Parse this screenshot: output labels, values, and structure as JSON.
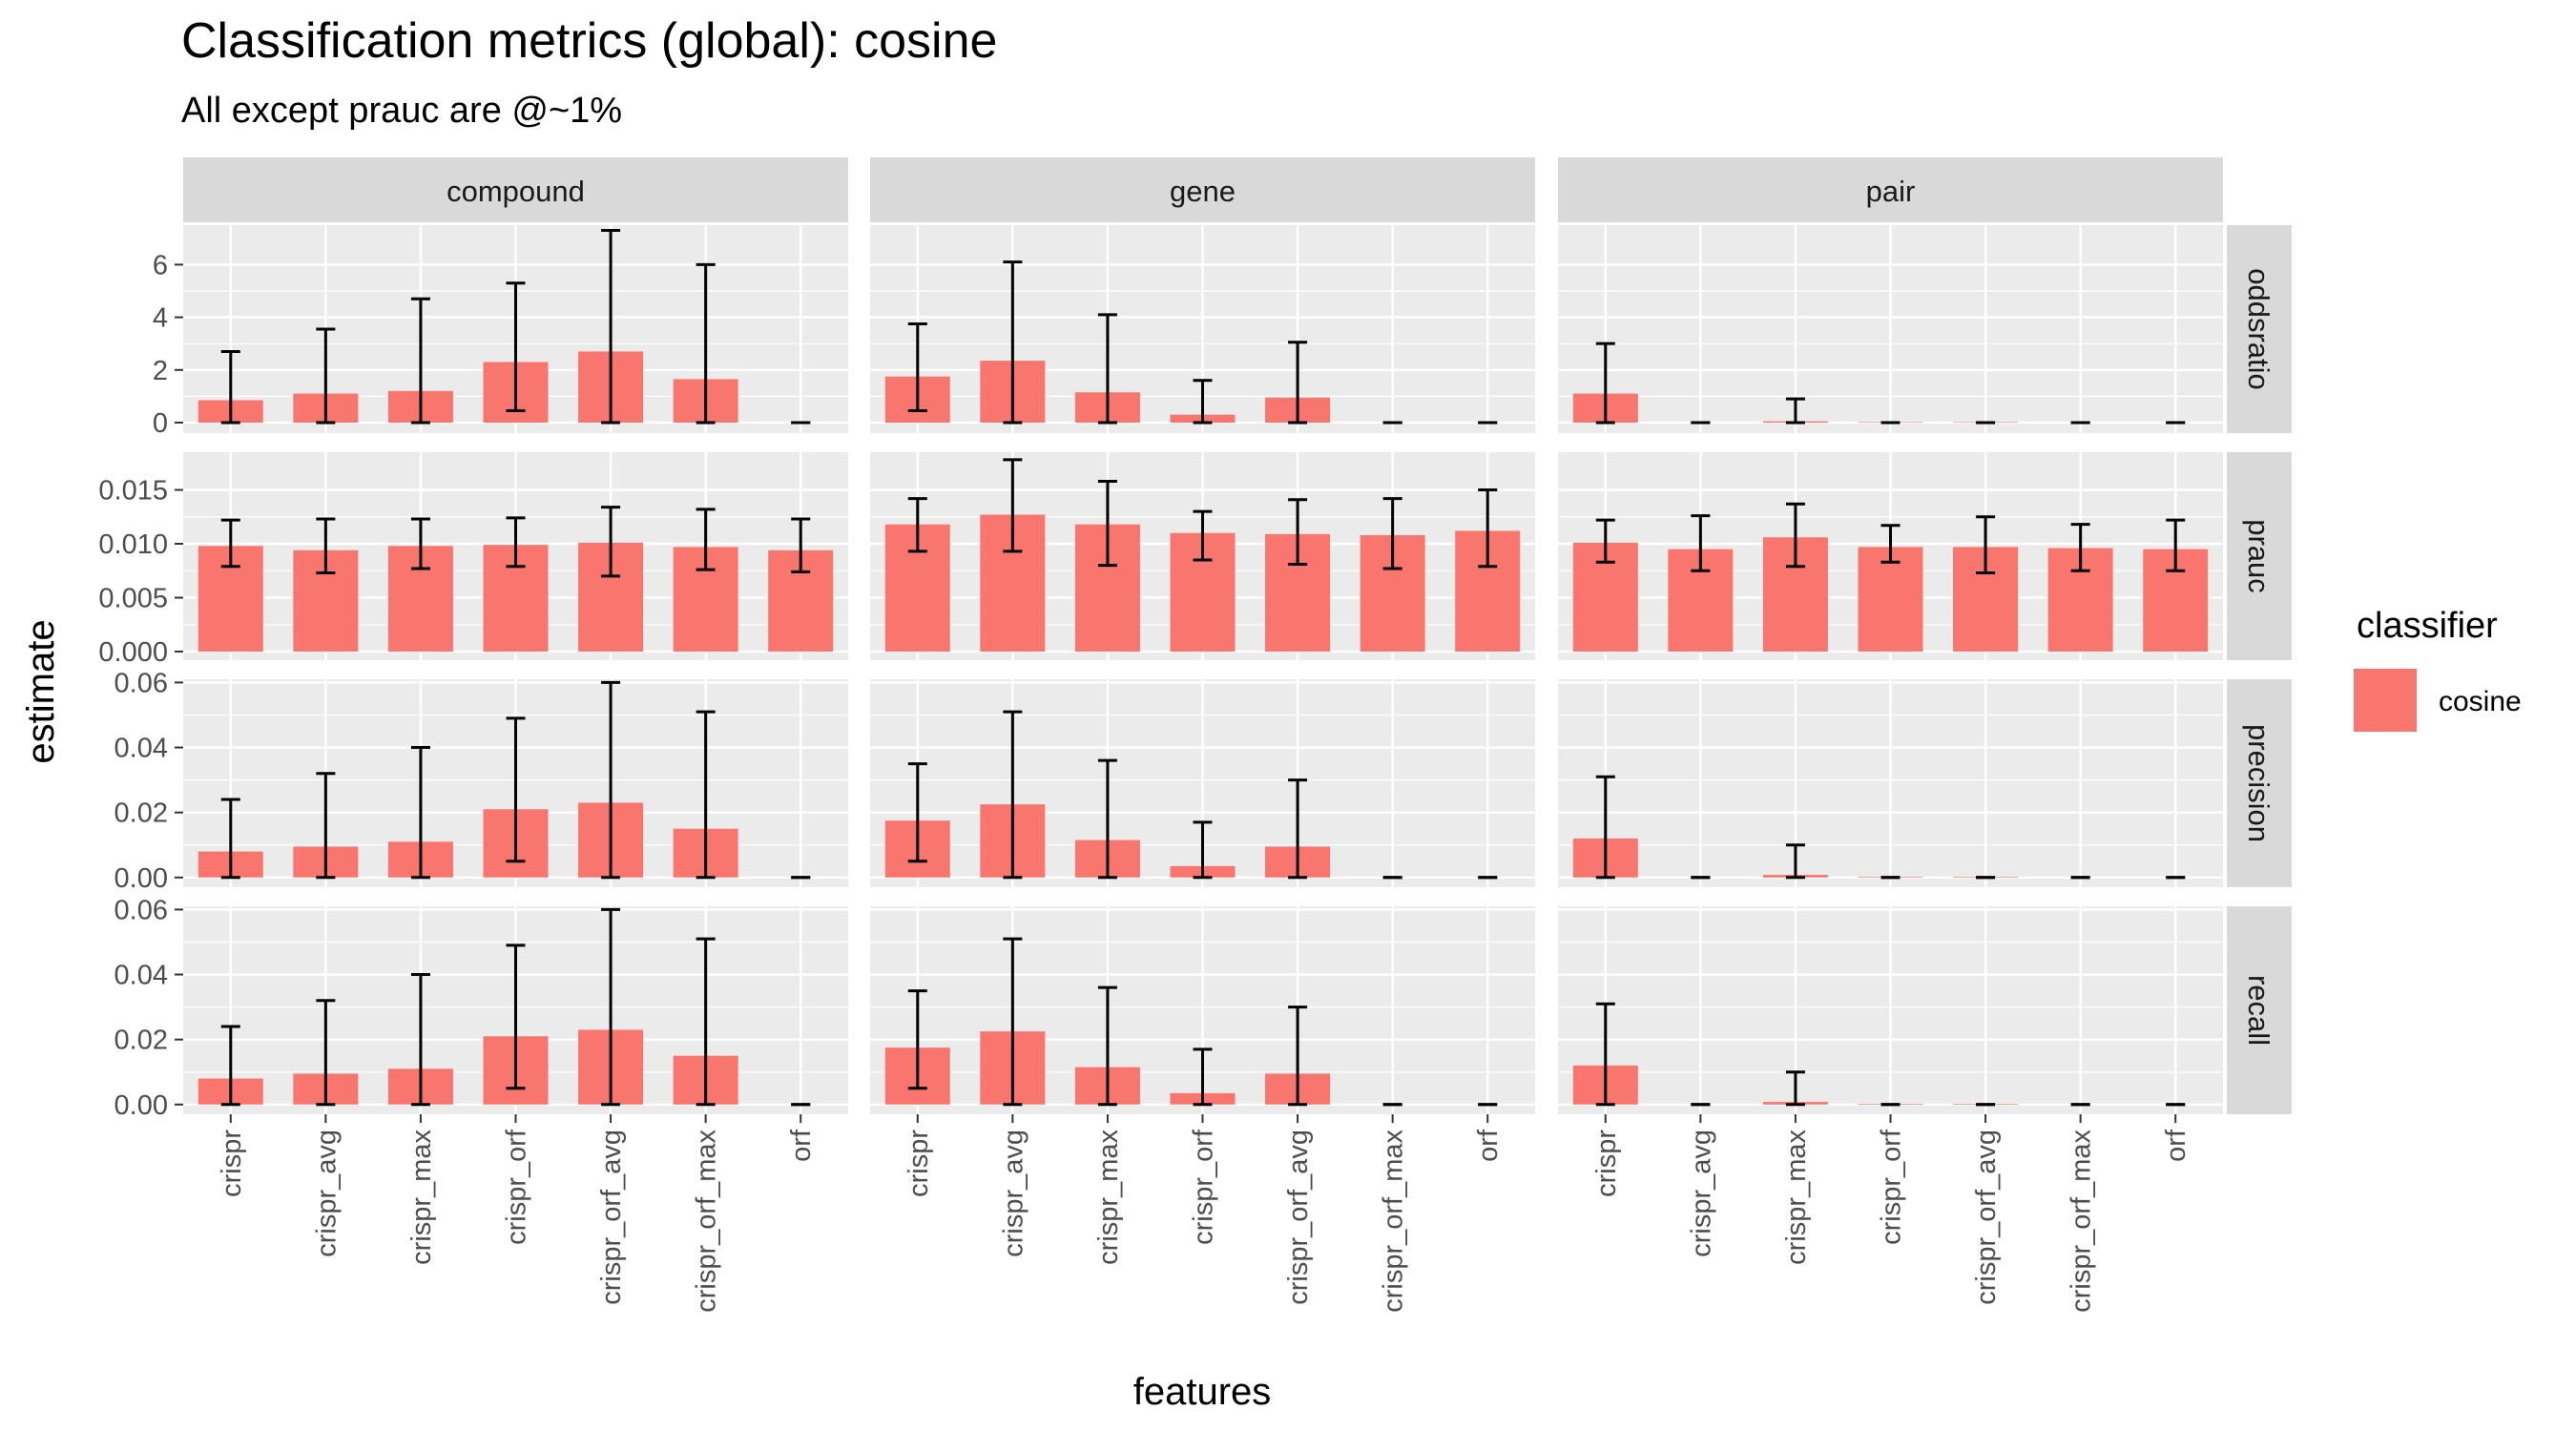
{
  "chart_data": {
    "type": "bar",
    "title": "Classification metrics (global): cosine",
    "subtitle": "All except prauc are @~1%",
    "xlabel": "features",
    "ylabel": "estimate",
    "categories": [
      "crispr",
      "crispr_avg",
      "crispr_max",
      "crispr_orf",
      "crispr_orf_avg",
      "crispr_orf_max",
      "orf"
    ],
    "facet_columns": [
      "compound",
      "gene",
      "pair"
    ],
    "facet_rows": [
      "oddsratio",
      "prauc",
      "precision",
      "recall"
    ],
    "legend": {
      "title": "classifier",
      "entries": [
        {
          "name": "cosine",
          "color": "#F8766D"
        }
      ]
    },
    "colors": {
      "bar": "#F8766D",
      "panel": "#EBEBEB",
      "grid": "#FFFFFF",
      "strip": "#D9D9D9",
      "errorbar": "#000000"
    },
    "rows": {
      "oddsratio": {
        "ylim": [
          -0.4,
          7.5
        ],
        "ticks": [
          0,
          2,
          4,
          6
        ],
        "tick_labels": [
          "0",
          "2",
          "4",
          "6"
        ],
        "panels": {
          "compound": {
            "values": [
              0.85,
              1.1,
              1.2,
              2.3,
              2.7,
              1.65,
              0.0
            ],
            "lower": [
              0.0,
              0.0,
              0.0,
              0.45,
              0.0,
              0.0,
              0.0
            ],
            "upper": [
              2.7,
              3.55,
              4.7,
              5.3,
              7.3,
              6.0,
              0.0
            ]
          },
          "gene": {
            "values": [
              1.75,
              2.35,
              1.15,
              0.3,
              0.95,
              0.0,
              0.0
            ],
            "lower": [
              0.45,
              0.0,
              0.0,
              0.0,
              0.0,
              0.0,
              0.0
            ],
            "upper": [
              3.75,
              6.1,
              4.1,
              1.6,
              3.05,
              0.0,
              0.0
            ]
          },
          "pair": {
            "values": [
              1.1,
              0.0,
              0.05,
              0.02,
              0.02,
              0.0,
              0.0
            ],
            "lower": [
              0.0,
              0.0,
              0.0,
              0.0,
              0.0,
              0.0,
              0.0
            ],
            "upper": [
              3.0,
              0.0,
              0.9,
              0.0,
              0.0,
              0.0,
              0.0
            ]
          }
        }
      },
      "prauc": {
        "ylim": [
          -0.0008,
          0.0185
        ],
        "ticks": [
          0,
          0.005,
          0.01,
          0.015
        ],
        "tick_labels": [
          "0.000",
          "0.005",
          "0.010",
          "0.015"
        ],
        "panels": {
          "compound": {
            "values": [
              0.0098,
              0.0094,
              0.0098,
              0.0099,
              0.0101,
              0.0097,
              0.0094
            ],
            "lower": [
              0.0079,
              0.0073,
              0.0077,
              0.0079,
              0.007,
              0.0076,
              0.0074
            ],
            "upper": [
              0.0122,
              0.0123,
              0.0123,
              0.0124,
              0.0134,
              0.0132,
              0.0123
            ]
          },
          "gene": {
            "values": [
              0.0118,
              0.0127,
              0.0118,
              0.011,
              0.0109,
              0.0108,
              0.0112
            ],
            "lower": [
              0.0093,
              0.0093,
              0.008,
              0.0085,
              0.0081,
              0.0077,
              0.0079
            ],
            "upper": [
              0.0142,
              0.0178,
              0.0158,
              0.013,
              0.0141,
              0.0142,
              0.015
            ]
          },
          "pair": {
            "values": [
              0.0101,
              0.0095,
              0.0106,
              0.0097,
              0.0097,
              0.0096,
              0.0095
            ],
            "lower": [
              0.0083,
              0.0075,
              0.0079,
              0.0083,
              0.0073,
              0.0075,
              0.0075
            ],
            "upper": [
              0.0122,
              0.0126,
              0.0137,
              0.0117,
              0.0125,
              0.0118,
              0.0122
            ]
          }
        }
      },
      "precision": {
        "ylim": [
          -0.003,
          0.061
        ],
        "ticks": [
          0,
          0.02,
          0.04,
          0.06
        ],
        "tick_labels": [
          "0.00",
          "0.02",
          "0.04",
          "0.06"
        ],
        "panels": {
          "compound": {
            "values": [
              0.008,
              0.0095,
              0.011,
              0.021,
              0.023,
              0.015,
              0.0
            ],
            "lower": [
              0.0,
              0.0,
              0.0,
              0.005,
              0.0,
              0.0,
              0.0
            ],
            "upper": [
              0.024,
              0.032,
              0.04,
              0.049,
              0.06,
              0.051,
              0.0
            ]
          },
          "gene": {
            "values": [
              0.0175,
              0.0225,
              0.0115,
              0.0035,
              0.0095,
              0.0,
              0.0
            ],
            "lower": [
              0.005,
              0.0,
              0.0,
              0.0,
              0.0,
              0.0,
              0.0
            ],
            "upper": [
              0.035,
              0.051,
              0.036,
              0.017,
              0.03,
              0.0,
              0.0
            ]
          },
          "pair": {
            "values": [
              0.012,
              0.0,
              0.0008,
              0.0002,
              0.0002,
              0.0,
              0.0
            ],
            "lower": [
              0.0,
              0.0,
              0.0,
              0.0,
              0.0,
              0.0,
              0.0
            ],
            "upper": [
              0.031,
              0.0,
              0.01,
              0.0,
              0.0,
              0.0,
              0.0
            ]
          }
        }
      },
      "recall": {
        "ylim": [
          -0.003,
          0.061
        ],
        "ticks": [
          0,
          0.02,
          0.04,
          0.06
        ],
        "tick_labels": [
          "0.00",
          "0.02",
          "0.04",
          "0.06"
        ],
        "panels": {
          "compound": {
            "values": [
              0.008,
              0.0095,
              0.011,
              0.021,
              0.023,
              0.015,
              0.0
            ],
            "lower": [
              0.0,
              0.0,
              0.0,
              0.005,
              0.0,
              0.0,
              0.0
            ],
            "upper": [
              0.024,
              0.032,
              0.04,
              0.049,
              0.06,
              0.051,
              0.0
            ]
          },
          "gene": {
            "values": [
              0.0175,
              0.0225,
              0.0115,
              0.0035,
              0.0095,
              0.0,
              0.0
            ],
            "lower": [
              0.005,
              0.0,
              0.0,
              0.0,
              0.0,
              0.0,
              0.0
            ],
            "upper": [
              0.035,
              0.051,
              0.036,
              0.017,
              0.03,
              0.0,
              0.0
            ]
          },
          "pair": {
            "values": [
              0.012,
              0.0,
              0.0008,
              0.0002,
              0.0002,
              0.0,
              0.0
            ],
            "lower": [
              0.0,
              0.0,
              0.0,
              0.0,
              0.0,
              0.0,
              0.0
            ],
            "upper": [
              0.031,
              0.0,
              0.01,
              0.0,
              0.0,
              0.0,
              0.0
            ]
          }
        }
      }
    }
  }
}
